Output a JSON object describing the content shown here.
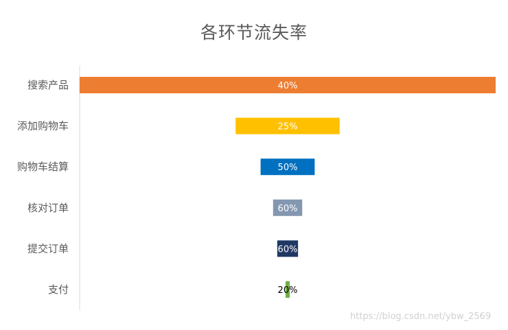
{
  "chart_data": {
    "type": "bar",
    "orientation": "horizontal",
    "style": "funnel",
    "title": "各环节流失率",
    "categories": [
      "搜索产品",
      "添加购物车",
      "购物车结算",
      "核对订单",
      "提交订单",
      "支付"
    ],
    "values": [
      100,
      25,
      13,
      7,
      5,
      1
    ],
    "data_labels": [
      "40%",
      "25%",
      "50%",
      "60%",
      "60%",
      "20%"
    ],
    "colors": [
      "#ED7D31",
      "#FFC000",
      "#0070C0",
      "#8497B0",
      "#203864",
      "#70AD47"
    ],
    "label_colors": [
      "#ffffff",
      "#ffffff",
      "#ffffff",
      "#ffffff",
      "#ffffff",
      "#000000"
    ],
    "grid": false,
    "legend": "none"
  },
  "watermark": "https://blog.csdn.net/ybw_2569"
}
